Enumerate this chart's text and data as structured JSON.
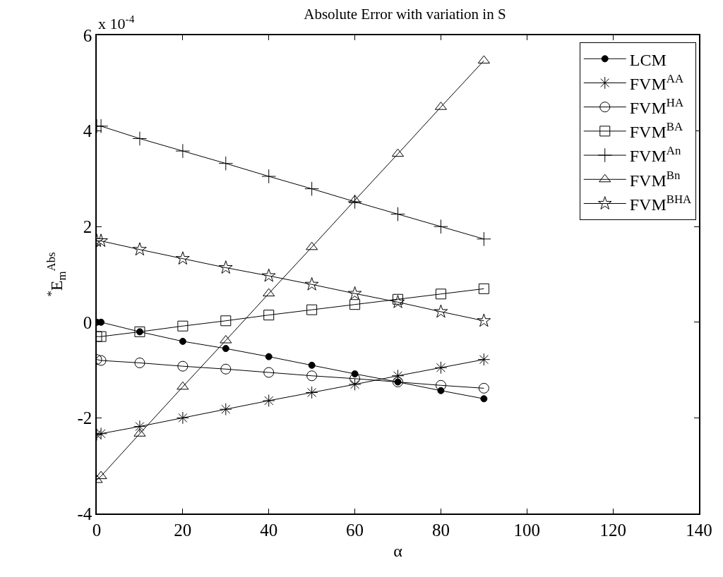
{
  "chart_data": {
    "type": "line",
    "title": "Absolute Error with variation in S",
    "xlabel": "α",
    "ylabel": "$^{*}$E$_{m}$$^{Abs}$",
    "annotations": [
      "x 10$^{-4}$"
    ],
    "x": [
      0,
      1,
      10,
      20,
      30,
      40,
      50,
      60,
      70,
      80,
      90
    ],
    "xlim": [
      0,
      140
    ],
    "xticks": [
      0,
      20,
      40,
      60,
      80,
      100,
      120,
      140
    ],
    "ylim": [
      -4,
      6
    ],
    "yticks": [
      -4,
      -2,
      0,
      2,
      4,
      6
    ],
    "grid": false,
    "legend": "top right",
    "line_style": "solid",
    "series": [
      {
        "name": "LCM",
        "color": "#000000",
        "marker": "circle",
        "values": [
          0,
          0,
          -0.2,
          -0.4,
          -0.55,
          -0.72,
          -0.9,
          -1.08,
          -1.25,
          -1.43,
          -1.6
        ]
      },
      {
        "name": "FVM$^{AA}$",
        "color": "#000000",
        "marker": "cross",
        "values": [
          -2.35,
          -2.33,
          -2.18,
          -2.0,
          -1.82,
          -1.64,
          -1.47,
          -1.3,
          -1.12,
          -0.95,
          -0.78
        ]
      },
      {
        "name": "FVM$^{HA}$",
        "color": "#000000",
        "marker": "circle-open",
        "values": [
          -0.78,
          -0.8,
          -0.85,
          -0.92,
          -0.98,
          -1.05,
          -1.12,
          -1.18,
          -1.25,
          -1.32,
          -1.38
        ]
      },
      {
        "name": "FVM$^{BA}$",
        "color": "#000000",
        "marker": "square-open",
        "values": [
          -0.3,
          -0.3,
          -0.2,
          -0.08,
          0.03,
          0.15,
          0.26,
          0.37,
          0.48,
          0.59,
          0.7
        ]
      },
      {
        "name": "FVM$^{An}$",
        "color": "#000000",
        "marker": "plus",
        "values": [
          4.1,
          4.1,
          3.84,
          3.58,
          3.32,
          3.05,
          2.79,
          2.52,
          2.26,
          2.0,
          1.74
        ]
      },
      {
        "name": "FVM$^{Bn}$",
        "color": "#000000",
        "marker": "triangle-open",
        "values": [
          -3.3,
          -3.22,
          -2.33,
          -1.35,
          -0.38,
          0.6,
          1.57,
          2.55,
          3.52,
          4.5,
          5.47
        ]
      },
      {
        "name": "FVM$^{BHA}$",
        "color": "#000000",
        "marker": "star-open",
        "values": [
          1.7,
          1.7,
          1.52,
          1.33,
          1.14,
          0.97,
          0.79,
          0.6,
          0.42,
          0.22,
          0.03
        ]
      }
    ]
  }
}
